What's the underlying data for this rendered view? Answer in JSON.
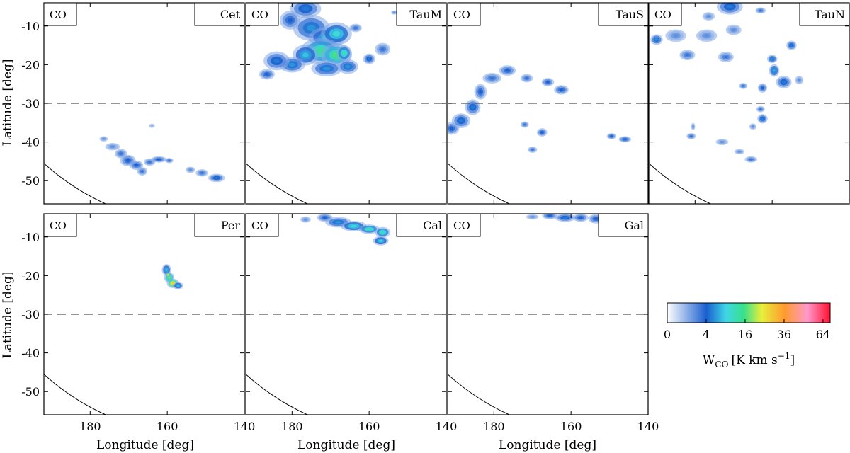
{
  "chart_data": {
    "type": "heatmap",
    "xlabel": "Longitude [deg]",
    "ylabel": "Latitude [deg]",
    "xlim": [
      192,
      140
    ],
    "ylim": [
      -56,
      -4
    ],
    "xticks": [
      180,
      160,
      140
    ],
    "yticks": [
      -10,
      -20,
      -30,
      -40,
      -50
    ],
    "reference_latitude": -30,
    "panels": [
      {
        "label": "Cet",
        "tag": "CO",
        "blobs": [
          {
            "lon": 176.5,
            "lat": -39.2,
            "rl": 0.8,
            "rb": 0.5,
            "v": 2
          },
          {
            "lon": 174.2,
            "lat": -41.2,
            "rl": 1.4,
            "rb": 0.7,
            "v": 2
          },
          {
            "lon": 172.0,
            "lat": -43.0,
            "rl": 1.2,
            "rb": 0.9,
            "v": 3
          },
          {
            "lon": 170.2,
            "lat": -44.8,
            "rl": 1.5,
            "rb": 1.1,
            "v": 4
          },
          {
            "lon": 168.0,
            "lat": -46.0,
            "rl": 1.3,
            "rb": 0.9,
            "v": 4
          },
          {
            "lon": 166.5,
            "lat": -47.6,
            "rl": 1.0,
            "rb": 0.8,
            "v": 3
          },
          {
            "lon": 164.6,
            "lat": -45.2,
            "rl": 1.1,
            "rb": 0.7,
            "v": 3
          },
          {
            "lon": 162.2,
            "lat": -44.5,
            "rl": 1.5,
            "rb": 0.6,
            "v": 4
          },
          {
            "lon": 159.5,
            "lat": -44.8,
            "rl": 0.8,
            "rb": 0.5,
            "v": 3
          },
          {
            "lon": 154.0,
            "lat": -47.2,
            "rl": 0.9,
            "rb": 0.6,
            "v": 2
          },
          {
            "lon": 151.0,
            "lat": -48.0,
            "rl": 1.2,
            "rb": 0.7,
            "v": 3
          },
          {
            "lon": 147.2,
            "lat": -49.3,
            "rl": 1.6,
            "rb": 0.8,
            "v": 5
          },
          {
            "lon": 164.0,
            "lat": -35.8,
            "rl": 0.6,
            "rb": 0.4,
            "v": 1
          }
        ]
      },
      {
        "label": "TauM",
        "tag": "CO",
        "blobs": [
          {
            "lon": 176.5,
            "lat": -5.5,
            "rl": 3.0,
            "rb": 1.8,
            "v": 5
          },
          {
            "lon": 180.5,
            "lat": -8.5,
            "rl": 2.0,
            "rb": 1.8,
            "v": 4
          },
          {
            "lon": 175.0,
            "lat": -10.5,
            "rl": 3.5,
            "rb": 2.5,
            "v": 6
          },
          {
            "lon": 171.0,
            "lat": -13.0,
            "rl": 3.5,
            "rb": 2.0,
            "v": 8
          },
          {
            "lon": 168.5,
            "lat": -12.0,
            "rl": 3.0,
            "rb": 2.2,
            "v": 10
          },
          {
            "lon": 172.5,
            "lat": -16.5,
            "rl": 4.0,
            "rb": 2.5,
            "v": 14
          },
          {
            "lon": 168.5,
            "lat": -17.5,
            "rl": 3.0,
            "rb": 2.2,
            "v": 16
          },
          {
            "lon": 176.5,
            "lat": -17.5,
            "rl": 2.5,
            "rb": 2.0,
            "v": 8
          },
          {
            "lon": 180.0,
            "lat": -20.0,
            "rl": 2.5,
            "rb": 1.5,
            "v": 6
          },
          {
            "lon": 184.0,
            "lat": -19.0,
            "rl": 2.5,
            "rb": 1.8,
            "v": 5
          },
          {
            "lon": 186.5,
            "lat": -22.5,
            "rl": 1.5,
            "rb": 1.0,
            "v": 4
          },
          {
            "lon": 171.0,
            "lat": -21.0,
            "rl": 3.0,
            "rb": 1.5,
            "v": 6
          },
          {
            "lon": 165.5,
            "lat": -20.5,
            "rl": 2.0,
            "rb": 1.4,
            "v": 6
          },
          {
            "lon": 166.5,
            "lat": -17.0,
            "rl": 1.5,
            "rb": 1.5,
            "v": 12
          },
          {
            "lon": 160.0,
            "lat": -18.5,
            "rl": 1.2,
            "rb": 1.0,
            "v": 5
          },
          {
            "lon": 156.5,
            "lat": -16.0,
            "rl": 1.5,
            "rb": 1.2,
            "v": 3
          },
          {
            "lon": 163.5,
            "lat": -10.5,
            "rl": 1.2,
            "rb": 0.8,
            "v": 3
          },
          {
            "lon": 153.5,
            "lat": -6.5,
            "rl": 0.6,
            "rb": 0.4,
            "v": 2
          }
        ]
      },
      {
        "label": "TauS",
        "tag": "CO",
        "blobs": [
          {
            "lon": 191.0,
            "lat": -36.5,
            "rl": 1.5,
            "rb": 1.2,
            "v": 4
          },
          {
            "lon": 188.5,
            "lat": -34.5,
            "rl": 1.8,
            "rb": 1.4,
            "v": 5
          },
          {
            "lon": 185.5,
            "lat": -31.0,
            "rl": 1.5,
            "rb": 1.5,
            "v": 5
          },
          {
            "lon": 183.5,
            "lat": -27.0,
            "rl": 1.2,
            "rb": 1.5,
            "v": 4
          },
          {
            "lon": 180.5,
            "lat": -23.5,
            "rl": 1.8,
            "rb": 1.0,
            "v": 3
          },
          {
            "lon": 176.5,
            "lat": -21.5,
            "rl": 1.6,
            "rb": 1.0,
            "v": 4
          },
          {
            "lon": 171.5,
            "lat": -23.5,
            "rl": 1.2,
            "rb": 0.8,
            "v": 3
          },
          {
            "lon": 166.0,
            "lat": -24.5,
            "rl": 1.2,
            "rb": 0.8,
            "v": 4
          },
          {
            "lon": 162.5,
            "lat": -26.5,
            "rl": 1.4,
            "rb": 0.9,
            "v": 4
          },
          {
            "lon": 172.0,
            "lat": -35.5,
            "rl": 0.8,
            "rb": 0.6,
            "v": 3
          },
          {
            "lon": 167.5,
            "lat": -37.5,
            "rl": 1.0,
            "rb": 0.8,
            "v": 4
          },
          {
            "lon": 170.0,
            "lat": -42.0,
            "rl": 0.9,
            "rb": 0.6,
            "v": 3
          },
          {
            "lon": 149.5,
            "lat": -38.5,
            "rl": 0.9,
            "rb": 0.6,
            "v": 4
          },
          {
            "lon": 146.0,
            "lat": -39.3,
            "rl": 1.2,
            "rb": 0.6,
            "v": 4
          }
        ]
      },
      {
        "label": "TauN",
        "tag": "CO",
        "blobs": [
          {
            "lon": 171.0,
            "lat": -5.0,
            "rl": 2.5,
            "rb": 1.5,
            "v": 5
          },
          {
            "lon": 176.5,
            "lat": -7.5,
            "rl": 1.2,
            "rb": 0.8,
            "v": 2
          },
          {
            "lon": 163.0,
            "lat": -6.0,
            "rl": 1.0,
            "rb": 0.6,
            "v": 3
          },
          {
            "lon": 190.0,
            "lat": -13.5,
            "rl": 1.2,
            "rb": 1.0,
            "v": 6
          },
          {
            "lon": 185.0,
            "lat": -12.5,
            "rl": 2.0,
            "rb": 1.2,
            "v": 2
          },
          {
            "lon": 177.0,
            "lat": -12.5,
            "rl": 2.0,
            "rb": 1.2,
            "v": 2
          },
          {
            "lon": 170.0,
            "lat": -11.0,
            "rl": 1.5,
            "rb": 1.0,
            "v": 2
          },
          {
            "lon": 182.0,
            "lat": -17.5,
            "rl": 1.5,
            "rb": 1.0,
            "v": 3
          },
          {
            "lon": 172.0,
            "lat": -18.0,
            "rl": 1.5,
            "rb": 1.0,
            "v": 3
          },
          {
            "lon": 155.0,
            "lat": -15.0,
            "rl": 1.0,
            "rb": 0.9,
            "v": 5
          },
          {
            "lon": 160.0,
            "lat": -18.5,
            "rl": 1.0,
            "rb": 0.8,
            "v": 6
          },
          {
            "lon": 159.5,
            "lat": -21.5,
            "rl": 1.0,
            "rb": 1.2,
            "v": 7
          },
          {
            "lon": 157.0,
            "lat": -24.5,
            "rl": 1.5,
            "rb": 1.2,
            "v": 5
          },
          {
            "lon": 162.5,
            "lat": -26.0,
            "rl": 0.9,
            "rb": 0.9,
            "v": 4
          },
          {
            "lon": 167.5,
            "lat": -25.5,
            "rl": 0.8,
            "rb": 0.6,
            "v": 3
          },
          {
            "lon": 163.0,
            "lat": -31.5,
            "rl": 0.8,
            "rb": 0.6,
            "v": 3
          },
          {
            "lon": 162.5,
            "lat": -34.0,
            "rl": 1.0,
            "rb": 0.9,
            "v": 5
          },
          {
            "lon": 165.0,
            "lat": -36.0,
            "rl": 0.7,
            "rb": 0.6,
            "v": 2
          },
          {
            "lon": 181.0,
            "lat": -38.5,
            "rl": 0.9,
            "rb": 0.6,
            "v": 3
          },
          {
            "lon": 180.5,
            "lat": -36.0,
            "rl": 0.4,
            "rb": 0.7,
            "v": 2
          },
          {
            "lon": 173.0,
            "lat": -40.0,
            "rl": 1.2,
            "rb": 0.6,
            "v": 2
          },
          {
            "lon": 168.5,
            "lat": -42.5,
            "rl": 1.0,
            "rb": 0.5,
            "v": 2
          },
          {
            "lon": 165.5,
            "lat": -44.5,
            "rl": 1.2,
            "rb": 0.6,
            "v": 3
          },
          {
            "lon": 153.0,
            "lat": -24.0,
            "rl": 0.8,
            "rb": 0.8,
            "v": 2
          }
        ]
      },
      {
        "label": "Per",
        "tag": "CO",
        "blobs": [
          {
            "lon": 160.2,
            "lat": -18.5,
            "rl": 0.9,
            "rb": 1.1,
            "v": 8
          },
          {
            "lon": 159.5,
            "lat": -20.5,
            "rl": 1.0,
            "rb": 1.0,
            "v": 18
          },
          {
            "lon": 158.5,
            "lat": -22.0,
            "rl": 1.2,
            "rb": 0.9,
            "v": 28
          },
          {
            "lon": 157.2,
            "lat": -22.6,
            "rl": 1.0,
            "rb": 0.7,
            "v": 8
          },
          {
            "lon": 159.8,
            "lat": -19.8,
            "rl": 0.5,
            "rb": 0.5,
            "v": 25
          }
        ]
      },
      {
        "label": "Cal",
        "tag": "CO",
        "blobs": [
          {
            "lon": 171.5,
            "lat": -5.0,
            "rl": 1.5,
            "rb": 0.8,
            "v": 4
          },
          {
            "lon": 168.0,
            "lat": -6.2,
            "rl": 2.5,
            "rb": 1.0,
            "v": 6
          },
          {
            "lon": 164.0,
            "lat": -7.2,
            "rl": 2.5,
            "rb": 1.0,
            "v": 10
          },
          {
            "lon": 160.0,
            "lat": -8.0,
            "rl": 2.0,
            "rb": 0.9,
            "v": 12
          },
          {
            "lon": 156.5,
            "lat": -8.8,
            "rl": 1.5,
            "rb": 1.0,
            "v": 12
          },
          {
            "lon": 157.0,
            "lat": -11.0,
            "rl": 1.5,
            "rb": 0.9,
            "v": 9
          },
          {
            "lon": 176.5,
            "lat": -5.5,
            "rl": 1.0,
            "rb": 0.6,
            "v": 2
          }
        ]
      },
      {
        "label": "Gal",
        "tag": "CO",
        "blobs": [
          {
            "lon": 165.5,
            "lat": -4.5,
            "rl": 1.5,
            "rb": 0.7,
            "v": 4
          },
          {
            "lon": 161.5,
            "lat": -5.0,
            "rl": 2.0,
            "rb": 0.8,
            "v": 5
          },
          {
            "lon": 157.5,
            "lat": -5.0,
            "rl": 1.5,
            "rb": 0.8,
            "v": 4
          },
          {
            "lon": 153.5,
            "lat": -5.3,
            "rl": 1.5,
            "rb": 0.9,
            "v": 4
          },
          {
            "lon": 170.0,
            "lat": -4.8,
            "rl": 1.2,
            "rb": 0.5,
            "v": 2
          },
          {
            "lon": 151.5,
            "lat": -7.5,
            "rl": 0.8,
            "rb": 0.5,
            "v": 2
          }
        ]
      }
    ],
    "colorbar": {
      "label": "W",
      "label_sub": "CO",
      "label_units": "[K km s",
      "label_exp": "−1",
      "label_close": "]",
      "scale": "sqrt",
      "ticks": [
        {
          "value": 0,
          "label": "0"
        },
        {
          "value": 4,
          "label": "4"
        },
        {
          "value": 16,
          "label": "16"
        },
        {
          "value": 36,
          "label": "36"
        },
        {
          "value": 64,
          "label": "64"
        }
      ],
      "range": [
        0,
        70
      ],
      "colors": [
        "#ffffff",
        "#1a5fd0",
        "#3fd6e6",
        "#39e08a",
        "#e8ef3a",
        "#ff9a2e",
        "#ff99cc",
        "#ff1030"
      ]
    }
  }
}
